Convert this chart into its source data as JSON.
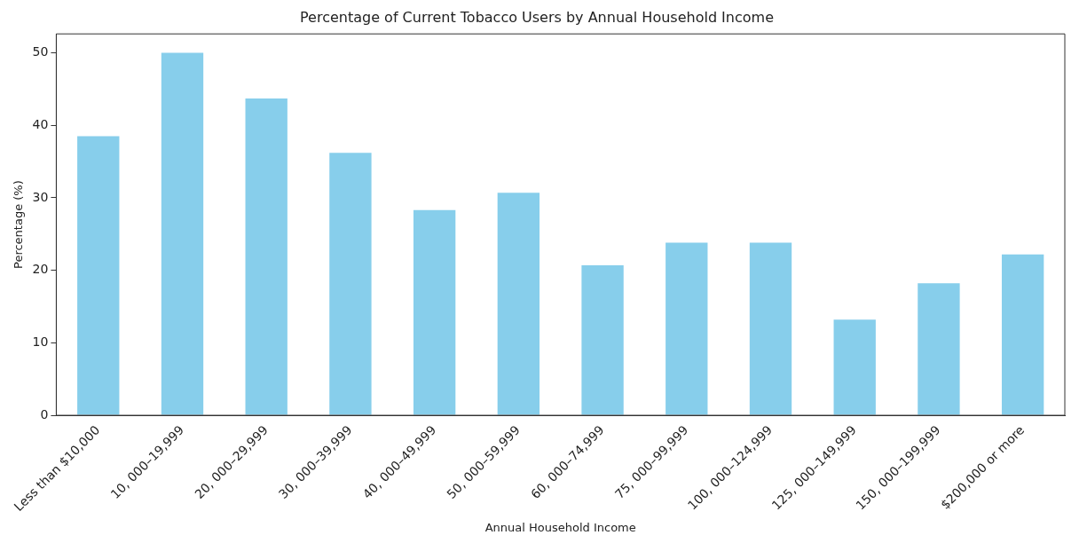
{
  "chart_data": {
    "type": "bar",
    "title": "Percentage of Current Tobacco Users by Annual Household Income",
    "xlabel": "Annual Household Income",
    "ylabel": "Percentage (%)",
    "categories": [
      "Less than $10,000",
      "10, 000–19,999",
      "20, 000–29,999",
      "30, 000–39,999",
      "40, 000–49,999",
      "50, 000–59,999",
      "60, 000–74,999",
      "75, 000–99,999",
      "100, 000–124,999",
      "125, 000–149,999",
      "150, 000–199,999",
      "$200,000 or more"
    ],
    "values": [
      38.5,
      50.0,
      43.7,
      36.2,
      28.3,
      30.7,
      20.7,
      23.8,
      23.8,
      13.2,
      18.2,
      22.2
    ],
    "color": "#87ceeb",
    "ylim": [
      0,
      52.6
    ],
    "yticks": [
      0,
      10,
      20,
      30,
      40,
      50
    ],
    "grid": false,
    "legend": false
  }
}
